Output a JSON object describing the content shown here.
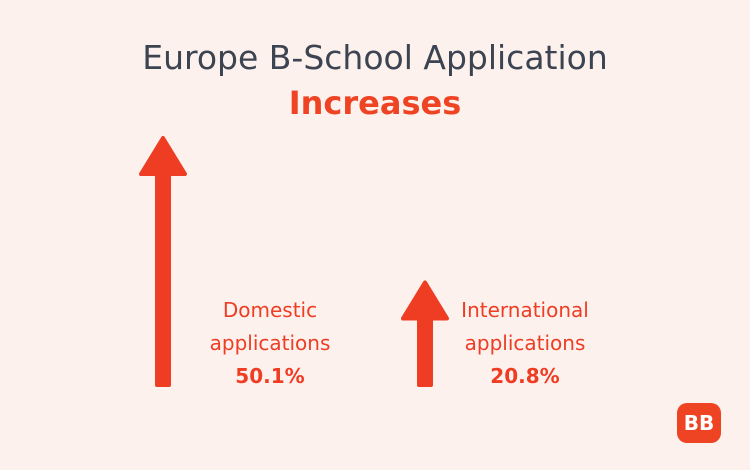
{
  "chart_data": {
    "type": "arrow",
    "title": "Europe B-School Application",
    "subtitle": "Increases",
    "categories": [
      "Domestic applications",
      "International applications"
    ],
    "values": [
      50.1,
      20.8
    ],
    "value_labels": [
      "50.1%",
      "20.8%"
    ],
    "color": "#ee3d23"
  },
  "logo": "BB"
}
